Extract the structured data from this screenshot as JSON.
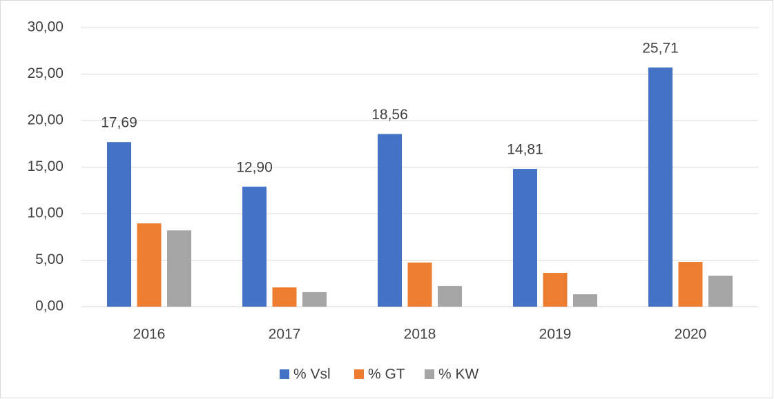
{
  "chart_data": {
    "type": "bar",
    "categories": [
      "2016",
      "2017",
      "2018",
      "2019",
      "2020"
    ],
    "series": [
      {
        "name": "% Vsl",
        "color": "#4472c4",
        "values": [
          17.69,
          12.9,
          18.56,
          14.81,
          25.71
        ],
        "value_labels": [
          "17,69",
          "12,90",
          "18,56",
          "14,81",
          "25,71"
        ]
      },
      {
        "name": "% GT",
        "color": "#ed7d31",
        "values": [
          8.95,
          2.07,
          4.74,
          3.63,
          4.81
        ]
      },
      {
        "name": "% KW",
        "color": "#a5a5a5",
        "values": [
          8.2,
          1.56,
          2.22,
          1.33,
          3.33
        ]
      }
    ],
    "ylim": [
      0,
      30
    ],
    "yticks": [
      {
        "value": 0,
        "label": "0,00"
      },
      {
        "value": 5,
        "label": "5,00"
      },
      {
        "value": 10,
        "label": "10,00"
      },
      {
        "value": 15,
        "label": "15,00"
      },
      {
        "value": 20,
        "label": "20,00"
      },
      {
        "value": 25,
        "label": "25,00"
      },
      {
        "value": 30,
        "label": "30,00"
      }
    ],
    "grid": true,
    "legend": "bottom"
  }
}
